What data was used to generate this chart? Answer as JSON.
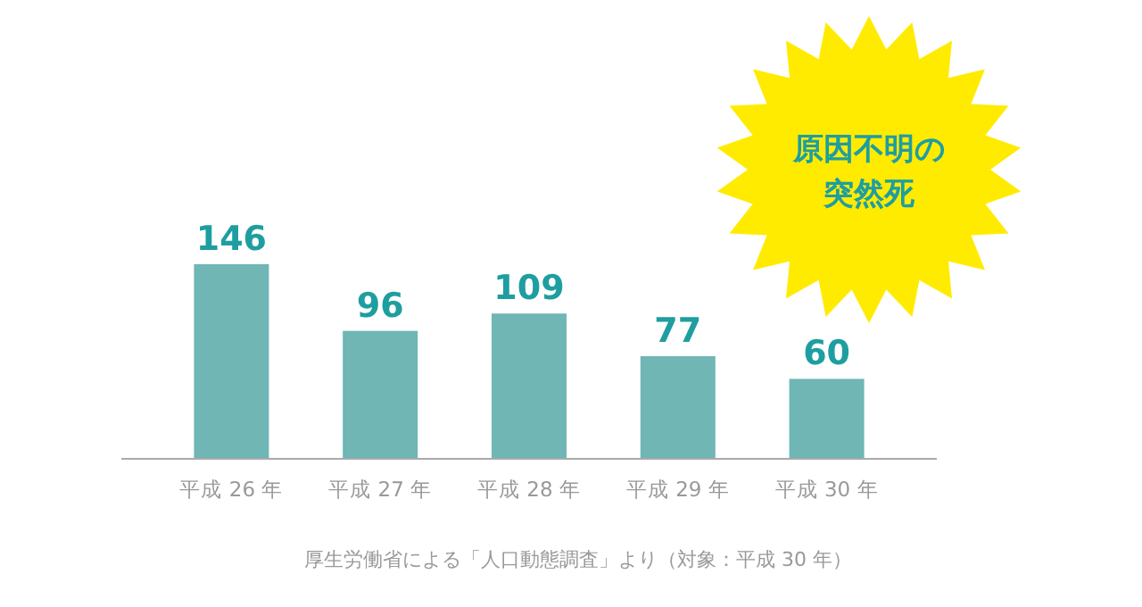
{
  "chart_data": {
    "type": "bar",
    "title": "原因不明の突然死",
    "categories": [
      "平成 26 年",
      "平成 27 年",
      "平成 28 年",
      "平成 29 年",
      "平成 30 年"
    ],
    "values": [
      146,
      96,
      109,
      77,
      60
    ],
    "color": "#6fb6b5",
    "data_labels": true,
    "annotations": [
      "厚生労働省による「人口動態調査」より（対象：平成 30 年）"
    ]
  }
}
